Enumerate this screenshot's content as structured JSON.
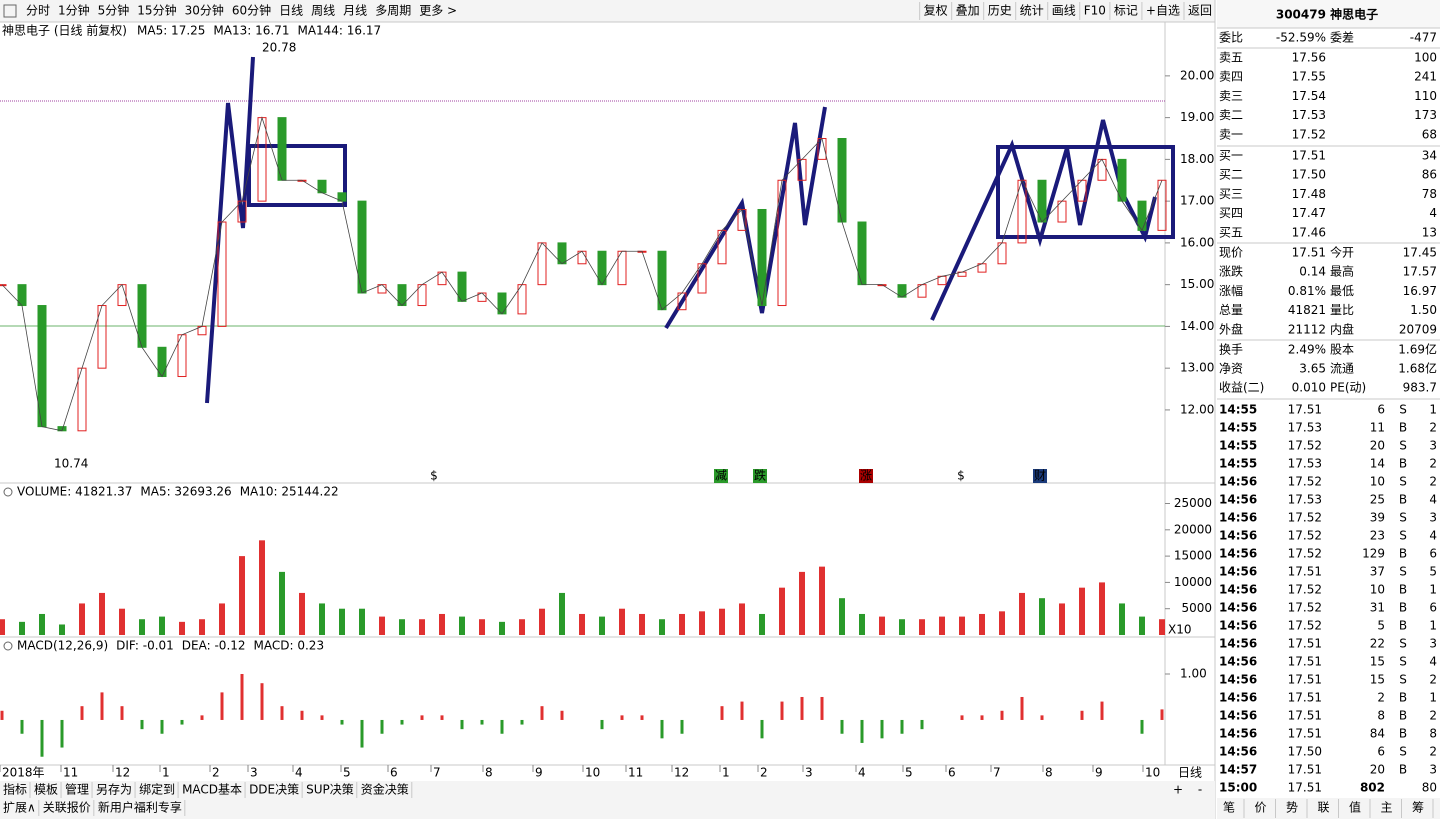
{
  "toolbar": {
    "periods": [
      "分时",
      "1分钟",
      "5分钟",
      "15分钟",
      "30分钟",
      "60分钟",
      "日线",
      "周线",
      "月线",
      "多周期",
      "更多 >"
    ],
    "actions": [
      "复权",
      "叠加",
      "历史",
      "统计",
      "画线",
      "F10",
      "标记",
      "+自选",
      "返回"
    ]
  },
  "price_panel": {
    "name": "神思电子 (日线 前复权)",
    "ma": [
      "MA5: 17.25",
      "MA13: 16.71",
      "MA144: 16.17"
    ],
    "high_label": "20.78",
    "low_label": "10.74",
    "ylim": [
      10.25,
      21.29
    ],
    "yticks": [
      {
        "value": 20,
        "label": "20.00"
      },
      {
        "value": 19,
        "label": "19.00"
      },
      {
        "value": 18,
        "label": "18.00"
      },
      {
        "value": 17,
        "label": "17.00"
      },
      {
        "value": 16,
        "label": "16.00"
      },
      {
        "value": 15,
        "label": "15.00"
      },
      {
        "value": 14,
        "label": "14.00"
      },
      {
        "value": 13,
        "label": "13.00"
      },
      {
        "value": 12,
        "label": "12.00"
      }
    ],
    "closes": [
      15.0,
      14.5,
      11.6,
      11.5,
      13.0,
      14.5,
      15.0,
      13.5,
      12.8,
      13.8,
      14.0,
      16.5,
      17.0,
      19.0,
      17.5,
      17.5,
      17.2,
      17.0,
      14.8,
      15.0,
      14.5,
      15.0,
      15.3,
      14.6,
      14.8,
      14.3,
      15.0,
      16.0,
      15.5,
      15.8,
      15.0,
      15.8,
      15.8,
      14.4,
      14.8,
      15.5,
      16.3,
      16.8,
      14.5,
      17.5,
      18.0,
      18.5,
      16.5,
      15.0,
      15.0,
      14.7,
      15.0,
      15.2,
      15.3,
      15.5,
      16.0,
      17.5,
      16.5,
      17.0,
      17.5,
      18.0,
      17.0,
      16.3,
      17.5
    ],
    "events": [
      "$",
      "减",
      "跌",
      "涨",
      "$",
      "财"
    ]
  },
  "volume_panel": {
    "title": "VOLUME: 41821.37",
    "ma": [
      "MA5: 32693.26",
      "MA10: 25144.22"
    ],
    "unit": "X10",
    "ylim": [
      -380,
      28330
    ],
    "yticks": [
      25000,
      20000,
      15000,
      10000,
      5000
    ],
    "values": [
      3000,
      2500,
      4000,
      2000,
      6000,
      8000,
      5000,
      3000,
      3500,
      2500,
      3000,
      6000,
      15000,
      18000,
      12000,
      8000,
      6000,
      5000,
      5000,
      3500,
      3000,
      3000,
      4000,
      3500,
      3000,
      2500,
      3000,
      5000,
      8000,
      4000,
      3500,
      5000,
      4000,
      3000,
      4000,
      4500,
      5000,
      6000,
      4000,
      9000,
      12000,
      13000,
      7000,
      4000,
      3500,
      3000,
      3000,
      3500,
      3500,
      4000,
      4500,
      8000,
      7000,
      6000,
      9000,
      10000,
      6000,
      3500,
      3000
    ]
  },
  "macd_panel": {
    "title": "MACD(12,26,9)",
    "lines": [
      "DIF: -0.01",
      "DEA: -0.12",
      "MACD: 0.23"
    ],
    "ylim": [
      -0.98,
      1.74
    ],
    "yticks": [
      {
        "value": 1,
        "label": "1.00"
      }
    ],
    "values": [
      0.2,
      -0.3,
      -0.8,
      -0.6,
      0.3,
      0.6,
      0.3,
      -0.2,
      -0.3,
      -0.1,
      0.1,
      0.6,
      1.0,
      0.8,
      0.3,
      0.2,
      0.1,
      -0.1,
      -0.6,
      -0.3,
      -0.1,
      0.1,
      0.1,
      -0.2,
      -0.1,
      -0.3,
      -0.1,
      0.3,
      0.2,
      0.0,
      -0.2,
      0.1,
      0.1,
      -0.4,
      -0.3,
      0.0,
      0.3,
      0.4,
      -0.4,
      0.4,
      0.5,
      0.5,
      -0.3,
      -0.5,
      -0.4,
      -0.3,
      -0.2,
      0.0,
      0.1,
      0.1,
      0.2,
      0.5,
      0.1,
      0.0,
      0.2,
      0.4,
      0.0,
      -0.3,
      0.23
    ]
  },
  "time_axis": {
    "labels": [
      "2018年",
      "11",
      "12",
      "1",
      "2",
      "3",
      "4",
      "5",
      "6",
      "7",
      "8",
      "9",
      "10",
      "11",
      "12",
      "1",
      "2",
      "3",
      "4",
      "5",
      "6",
      "7",
      "8",
      "9",
      "10"
    ],
    "period": "日线"
  },
  "bottom_tabs": [
    "指标",
    "模板",
    "管理",
    "另存为",
    "绑定到",
    "MACD基本",
    "DDE决策",
    "SUP决策",
    "资金决策"
  ],
  "zoom": [
    "+",
    "-"
  ],
  "footer_tabs": [
    "扩展∧",
    "关联报价",
    "新用户福利专享"
  ],
  "quote": {
    "title": "300479 神思电子",
    "ratio": [
      "委比",
      "-52.59%",
      "委差",
      "-477"
    ],
    "asks": [
      [
        "卖五",
        "17.56",
        "100"
      ],
      [
        "卖四",
        "17.55",
        "241"
      ],
      [
        "卖三",
        "17.54",
        "110"
      ],
      [
        "卖二",
        "17.53",
        "173"
      ],
      [
        "卖一",
        "17.52",
        "68"
      ]
    ],
    "bids": [
      [
        "买一",
        "17.51",
        "34"
      ],
      [
        "买二",
        "17.50",
        "86"
      ],
      [
        "买三",
        "17.48",
        "78"
      ],
      [
        "买四",
        "17.47",
        "4"
      ],
      [
        "买五",
        "17.46",
        "13"
      ]
    ],
    "stats": [
      [
        "现价",
        "17.51",
        "今开",
        "17.45"
      ],
      [
        "涨跌",
        "0.14",
        "最高",
        "17.57"
      ],
      [
        "涨幅",
        "0.81%",
        "最低",
        "16.97"
      ],
      [
        "总量",
        "41821",
        "量比",
        "1.50"
      ],
      [
        "外盘",
        "21112",
        "内盘",
        "20709"
      ],
      [
        "换手",
        "2.49%",
        "股本",
        "1.69亿"
      ],
      [
        "净资",
        "3.65",
        "流通",
        "1.68亿"
      ],
      [
        "收益(二)",
        "0.010",
        "PE(动)",
        "983.7"
      ]
    ],
    "trades": [
      [
        "14:55",
        "17.51",
        "6",
        "S",
        "1"
      ],
      [
        "14:55",
        "17.53",
        "11",
        "B",
        "2"
      ],
      [
        "14:55",
        "17.52",
        "20",
        "S",
        "3"
      ],
      [
        "14:55",
        "17.53",
        "14",
        "B",
        "2"
      ],
      [
        "14:56",
        "17.52",
        "10",
        "S",
        "2"
      ],
      [
        "14:56",
        "17.53",
        "25",
        "B",
        "4"
      ],
      [
        "14:56",
        "17.52",
        "39",
        "S",
        "3"
      ],
      [
        "14:56",
        "17.52",
        "23",
        "S",
        "4"
      ],
      [
        "14:56",
        "17.52",
        "129",
        "B",
        "6"
      ],
      [
        "14:56",
        "17.51",
        "37",
        "S",
        "5"
      ],
      [
        "14:56",
        "17.52",
        "10",
        "B",
        "1"
      ],
      [
        "14:56",
        "17.52",
        "31",
        "B",
        "6"
      ],
      [
        "14:56",
        "17.52",
        "5",
        "B",
        "1"
      ],
      [
        "14:56",
        "17.51",
        "22",
        "S",
        "3"
      ],
      [
        "14:56",
        "17.51",
        "15",
        "S",
        "4"
      ],
      [
        "14:56",
        "17.51",
        "15",
        "S",
        "2"
      ],
      [
        "14:56",
        "17.51",
        "2",
        "B",
        "1"
      ],
      [
        "14:56",
        "17.51",
        "8",
        "B",
        "2"
      ],
      [
        "14:56",
        "17.51",
        "84",
        "B",
        "8"
      ],
      [
        "14:56",
        "17.50",
        "6",
        "S",
        "2"
      ],
      [
        "14:57",
        "17.51",
        "20",
        "B",
        "3"
      ],
      [
        "15:00",
        "17.51",
        "802",
        "80"
      ]
    ],
    "tabs": [
      "笔",
      "价",
      "势",
      "联",
      "值",
      "主",
      "筹"
    ]
  }
}
